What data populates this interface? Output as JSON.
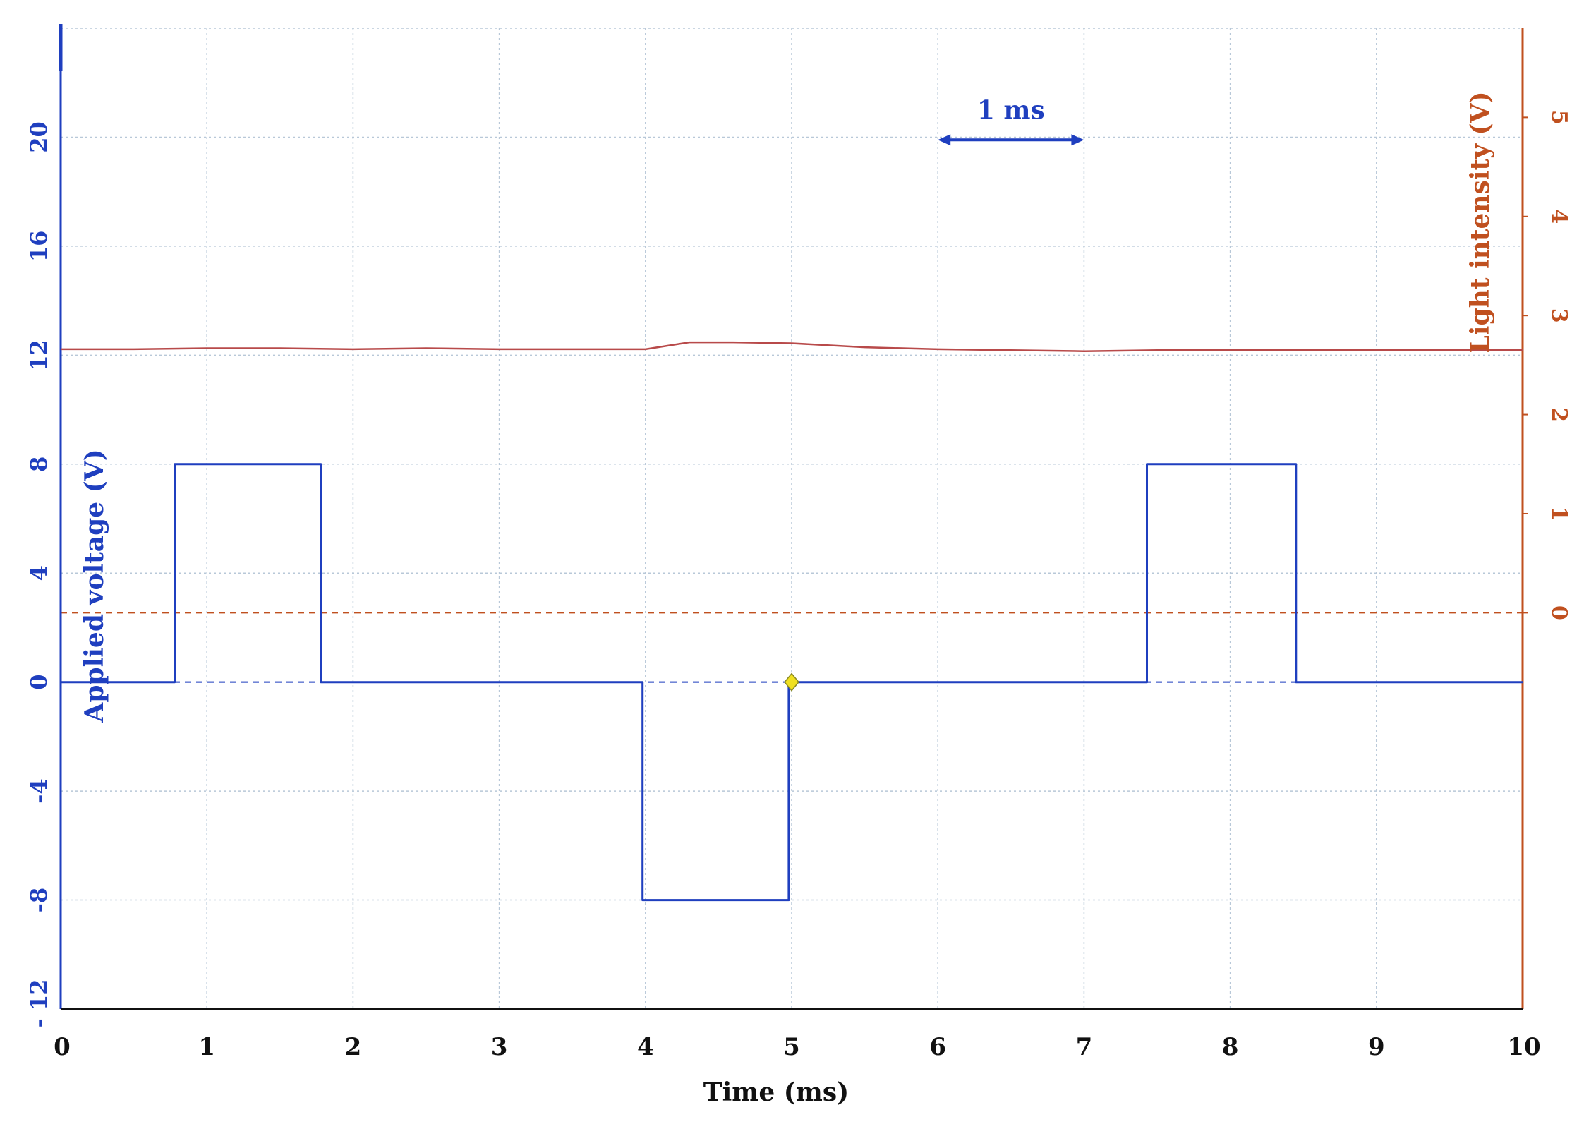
{
  "chart_data": {
    "type": "line",
    "title": "",
    "xlabel": "Time (ms)",
    "ylabel_left": "Applied voltage (V)",
    "ylabel_right": "Light intensity (V)",
    "xlim": [
      0,
      10
    ],
    "ylim_left": [
      -12,
      24
    ],
    "ylim_right": [
      -4,
      5.9
    ],
    "x_ticks": [
      "0",
      "1",
      "2",
      "3",
      "4",
      "5",
      "6",
      "7",
      "8",
      "9",
      "10"
    ],
    "y_left_ticks": [
      "- 12",
      "-8",
      "-4",
      "0",
      "4",
      "8",
      "12",
      "16",
      "20"
    ],
    "y_left_tick_values": [
      -12,
      -8,
      -4,
      0,
      4,
      8,
      12,
      16,
      20
    ],
    "y_right_ticks": [
      "0",
      "1",
      "2",
      "3",
      "4",
      "5"
    ],
    "y_right_tick_values": [
      0,
      1,
      2,
      3,
      4,
      5
    ],
    "grid": true,
    "colors": {
      "voltage": "#1f3fbf",
      "light": "#b84a4a",
      "right_axis": "#c0501f",
      "grid": "#b8c8d8",
      "marker": "#f0e020"
    },
    "series": [
      {
        "axis": "left",
        "x": [
          0,
          0.78,
          0.78,
          1.78,
          1.78,
          3.98,
          3.98,
          4.98,
          4.98,
          7.43,
          7.43,
          8.45,
          8.45,
          10
        ],
        "y": [
          0,
          0,
          8,
          8,
          0,
          0,
          -8,
          -8,
          0,
          0,
          8,
          8,
          0,
          0
        ]
      },
      {
        "axis": "right",
        "x": [
          0,
          0.5,
          1.0,
          1.5,
          2.0,
          2.5,
          3.0,
          3.5,
          4.0,
          4.3,
          4.6,
          5.0,
          5.5,
          6.0,
          6.5,
          7.0,
          7.5,
          8.0,
          8.5,
          9.0,
          9.5,
          10
        ],
        "y": [
          2.66,
          2.66,
          2.67,
          2.67,
          2.66,
          2.67,
          2.66,
          2.66,
          2.66,
          2.73,
          2.73,
          2.72,
          2.68,
          2.66,
          2.65,
          2.64,
          2.65,
          2.65,
          2.65,
          2.65,
          2.65,
          2.65
        ]
      }
    ],
    "reference_lines": [
      {
        "axis": "left",
        "y": 0,
        "style": "dashed"
      },
      {
        "axis": "right",
        "y": 0,
        "style": "dashed"
      }
    ],
    "marker_point": {
      "x": 5,
      "y": 0
    },
    "annotation": {
      "text": "1 ms",
      "x_from": 6,
      "x_to": 7,
      "y": 19.9
    }
  }
}
